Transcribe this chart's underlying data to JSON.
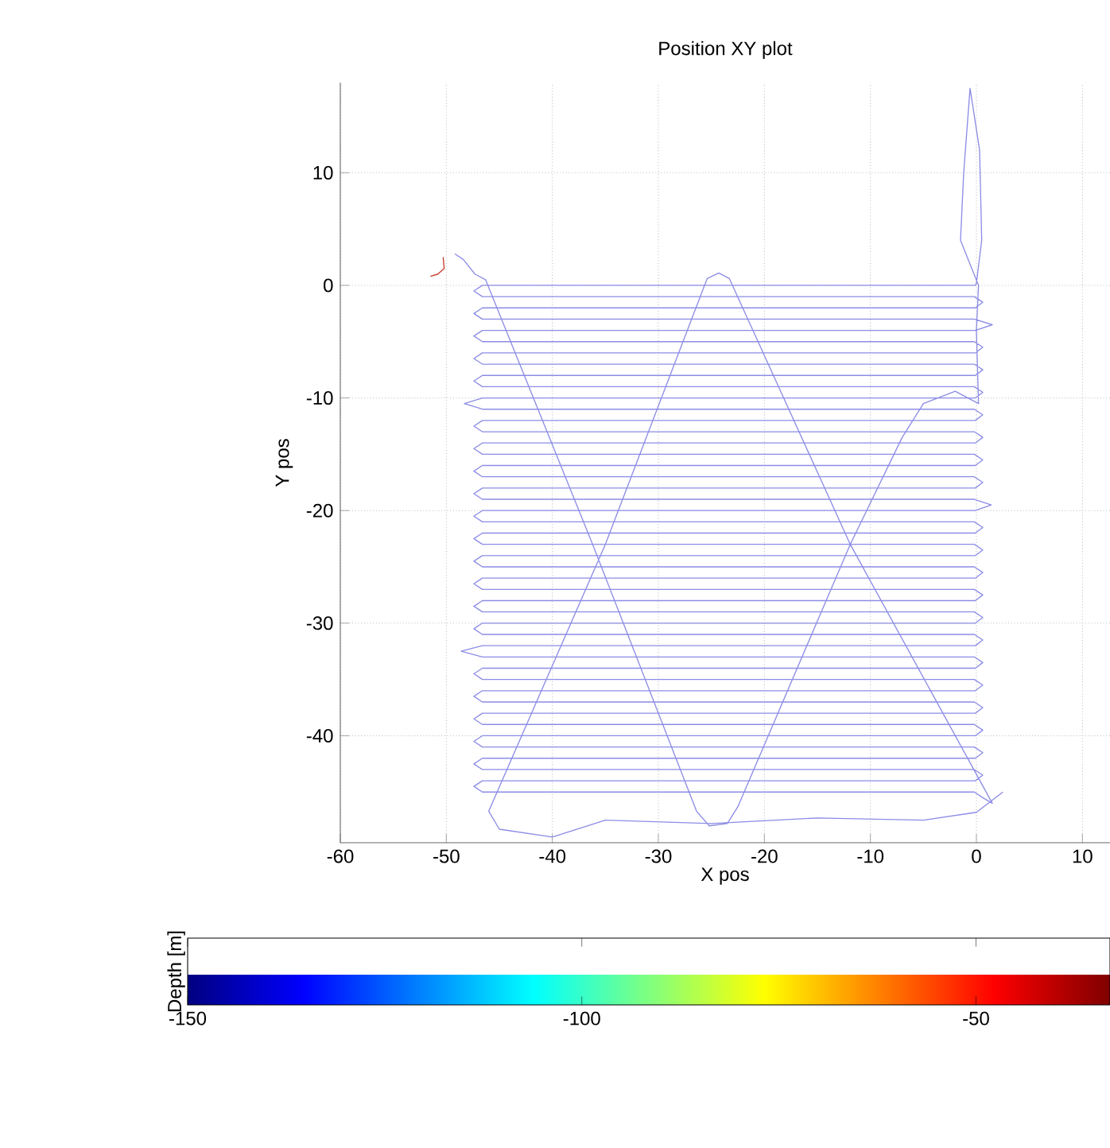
{
  "chart_data": {
    "type": "line",
    "title": "Position XY plot",
    "xlabel": "X pos",
    "ylabel": "Y pos",
    "clabel": "Depth [m]",
    "clim": [
      -150,
      -33
    ],
    "cticks": [
      -150,
      -100,
      -50
    ],
    "xlim": [
      -60,
      12.6
    ],
    "ylim": [
      -49.5,
      18
    ],
    "xticks": [
      -60,
      -50,
      -40,
      -30,
      -20,
      -10,
      0,
      10
    ],
    "yticks": [
      -40,
      -30,
      -20,
      -10,
      0,
      10
    ],
    "grid": true,
    "series": [
      {
        "color": "#8c8ce6",
        "x": [
          -49.2,
          -48.4,
          -47.3,
          -46.3,
          -36.2,
          -26.4,
          -25.2,
          -23.5,
          -22.5,
          -11.9,
          -7,
          -5,
          -2,
          0.2,
          0,
          0.2,
          -1.5,
          -1.2,
          -0.6,
          0.3,
          0.5,
          0,
          -0.1,
          -46.6,
          -47.4,
          -46.6,
          -0.2,
          0.6,
          -0.1,
          -46.6,
          -47.4,
          -46.6,
          -0.2,
          1.5,
          -0.1,
          -46.6,
          -47.4,
          -46.6,
          -0.2,
          0.6,
          -0.1,
          -46.6,
          -47.4,
          -46.6,
          -0.2,
          0.6,
          -0.1,
          -46.6,
          -47.4,
          -46.6,
          -0.2,
          0.6,
          -0.1,
          -46.6,
          -48.3,
          -46.6,
          -0.2,
          0.6,
          -0.1,
          -46.6,
          -47.4,
          -46.6,
          -0.2,
          0.6,
          -0.1,
          -46.6,
          -47.4,
          -46.6,
          -0.2,
          0.6,
          -0.1,
          -46.6,
          -47.4,
          -46.6,
          -0.2,
          0.6,
          -0.1,
          -46.6,
          -47.4,
          -46.6,
          -0.2,
          1.4,
          -0.1,
          -46.6,
          -47.4,
          -46.6,
          -0.2,
          0.6,
          -0.1,
          -46.6,
          -47.4,
          -46.6,
          -0.2,
          0.6,
          -0.1,
          -46.6,
          -47.4,
          -46.6,
          -0.2,
          0.6,
          -0.1,
          -46.6,
          -47.4,
          -46.6,
          -0.2,
          0.6,
          -0.1,
          -46.6,
          -47.4,
          -46.6,
          -0.2,
          0.6,
          -0.1,
          -46.6,
          -47.4,
          -46.6,
          -0.2,
          0.6,
          -0.1,
          -46.6,
          -48.6,
          -46.6,
          -0.2,
          0.6,
          -0.1,
          -46.6,
          -47.4,
          -46.6,
          -0.2,
          0.6,
          -0.1,
          -46.6,
          -47.4,
          -46.6,
          -0.2,
          0.6,
          -0.1,
          -46.6,
          -47.4,
          -46.6,
          -0.2,
          0.6,
          -0.1,
          -46.6,
          -47.4,
          -46.6,
          -0.2,
          0.6,
          -0.1,
          -46.6,
          -47.4,
          -46.6,
          -0.2,
          0.6,
          -0.1,
          -46.6,
          -47.4,
          -46.6,
          -0.2,
          0.6,
          1.5,
          -11.9,
          -23.3,
          -24.3,
          -25.4,
          -35,
          -46,
          -45,
          -40,
          -35,
          -25,
          -15,
          -5,
          0,
          2.5
        ],
        "values": [
          2.8,
          2.3,
          1.0,
          0.5,
          -23,
          -46.7,
          -48,
          -47.8,
          -46.3,
          -23,
          -13.5,
          -10.5,
          -9.4,
          -10.5,
          -4,
          0,
          4,
          10,
          17.5,
          12,
          4,
          0.2,
          0,
          0,
          -0.5,
          -1,
          -1,
          -1.5,
          -2,
          -2,
          -2.5,
          -3,
          -3,
          -3.5,
          -4,
          -4,
          -4.5,
          -5,
          -5,
          -5.5,
          -6,
          -6,
          -6.5,
          -7,
          -7,
          -7.5,
          -8,
          -8,
          -8.5,
          -9,
          -9,
          -9.5,
          -10,
          -10,
          -10.5,
          -11,
          -11,
          -11.5,
          -12,
          -12,
          -12.5,
          -13,
          -13,
          -13.5,
          -14,
          -14,
          -14.5,
          -15,
          -15,
          -15.5,
          -16,
          -16,
          -16.5,
          -17,
          -17,
          -17.5,
          -18,
          -18,
          -18.5,
          -19,
          -19,
          -19.5,
          -20,
          -20,
          -20.5,
          -21,
          -21,
          -21.5,
          -22,
          -22,
          -22.5,
          -23,
          -23,
          -23.5,
          -24,
          -24,
          -24.5,
          -25,
          -25,
          -25.5,
          -26,
          -26,
          -26.5,
          -27,
          -27,
          -27.5,
          -28,
          -28,
          -28.5,
          -29,
          -29,
          -29.5,
          -30,
          -30,
          -30.5,
          -31,
          -31,
          -31.5,
          -32,
          -32,
          -32.5,
          -33,
          -33,
          -33.5,
          -34,
          -34,
          -34.5,
          -35,
          -35,
          -35.5,
          -36,
          -36,
          -36.5,
          -37,
          -37,
          -37.5,
          -38,
          -38,
          -38.5,
          -39,
          -39,
          -39.5,
          -40,
          -40,
          -40.5,
          -41,
          -41,
          -41.5,
          -42,
          -42,
          -42.5,
          -43,
          -43,
          -43.5,
          -44,
          -44,
          -44.5,
          -45,
          -45,
          -45.5,
          -46,
          -23,
          0.6,
          1.1,
          0.6,
          -23,
          -46.7,
          -48.3,
          -49,
          -47.5,
          -47.8,
          -47.3,
          -47.5,
          -46.8,
          -45
        ]
      },
      {
        "color": "#c83c28",
        "x": [
          -51.5,
          -50.8,
          -50.2,
          -50.3
        ],
        "values": [
          0.8,
          1.0,
          1.5,
          2.5
        ]
      }
    ]
  }
}
